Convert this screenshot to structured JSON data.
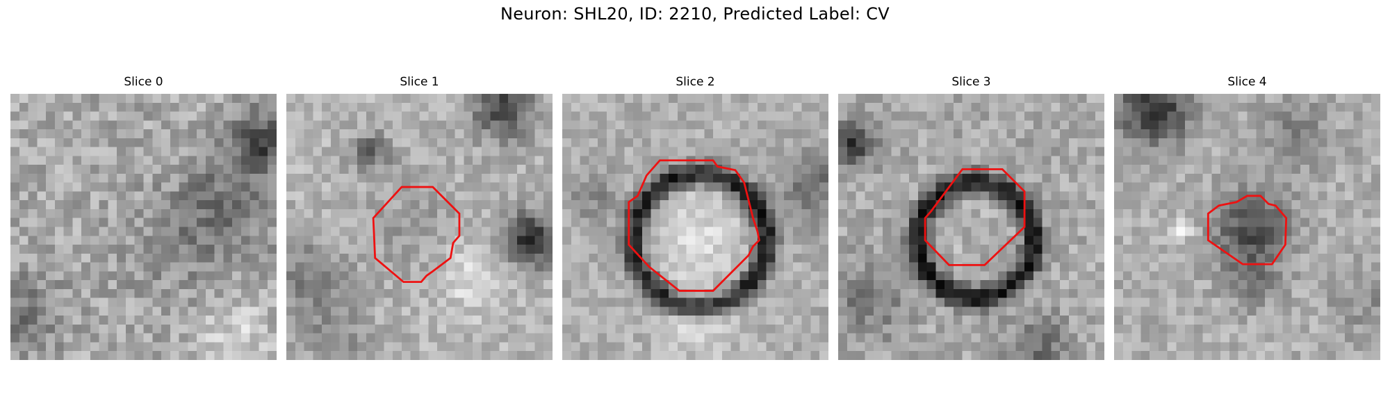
{
  "figure": {
    "title": "Neuron: SHL20, ID: 2210, Predicted Label: CV"
  },
  "colors": {
    "contour": "#ee1111",
    "background": "#ffffff",
    "image_colormap": "grayscale"
  },
  "panels": [
    {
      "title": "Slice 0",
      "texture": "diffuse-gray",
      "contour": false
    },
    {
      "title": "Slice 1",
      "texture": "pale-blob-with-dark-spots",
      "contour": true
    },
    {
      "title": "Slice 2",
      "texture": "dark-ring-bright-center",
      "contour": true
    },
    {
      "title": "Slice 3",
      "texture": "dark-ring-mid-center",
      "contour": true
    },
    {
      "title": "Slice 4",
      "texture": "dark-blob-small",
      "contour": true
    }
  ]
}
